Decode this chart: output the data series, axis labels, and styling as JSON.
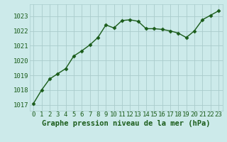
{
  "x": [
    0,
    1,
    2,
    3,
    4,
    5,
    6,
    7,
    8,
    9,
    10,
    11,
    12,
    13,
    14,
    15,
    16,
    17,
    18,
    19,
    20,
    21,
    22,
    23
  ],
  "y": [
    1017.1,
    1018.0,
    1018.75,
    1019.1,
    1019.45,
    1020.3,
    1020.65,
    1021.05,
    1021.55,
    1022.4,
    1022.2,
    1022.7,
    1022.75,
    1022.65,
    1022.15,
    1022.15,
    1022.1,
    1022.0,
    1021.85,
    1021.55,
    1022.0,
    1022.75,
    1023.05,
    1023.35
  ],
  "line_color": "#1a5c1a",
  "marker": "D",
  "marker_size": 2.5,
  "bg_color": "#cceaea",
  "grid_color": "#aacccc",
  "xlabel": "Graphe pression niveau de la mer (hPa)",
  "xlabel_fontsize": 7.5,
  "xlabel_color": "#1a5c1a",
  "ylabel_ticks": [
    1017,
    1018,
    1019,
    1020,
    1021,
    1022,
    1023
  ],
  "ylim": [
    1016.6,
    1023.8
  ],
  "xlim": [
    -0.5,
    23.5
  ],
  "tick_fontsize": 6.5,
  "tick_color": "#1a5c1a",
  "linewidth": 1.0
}
